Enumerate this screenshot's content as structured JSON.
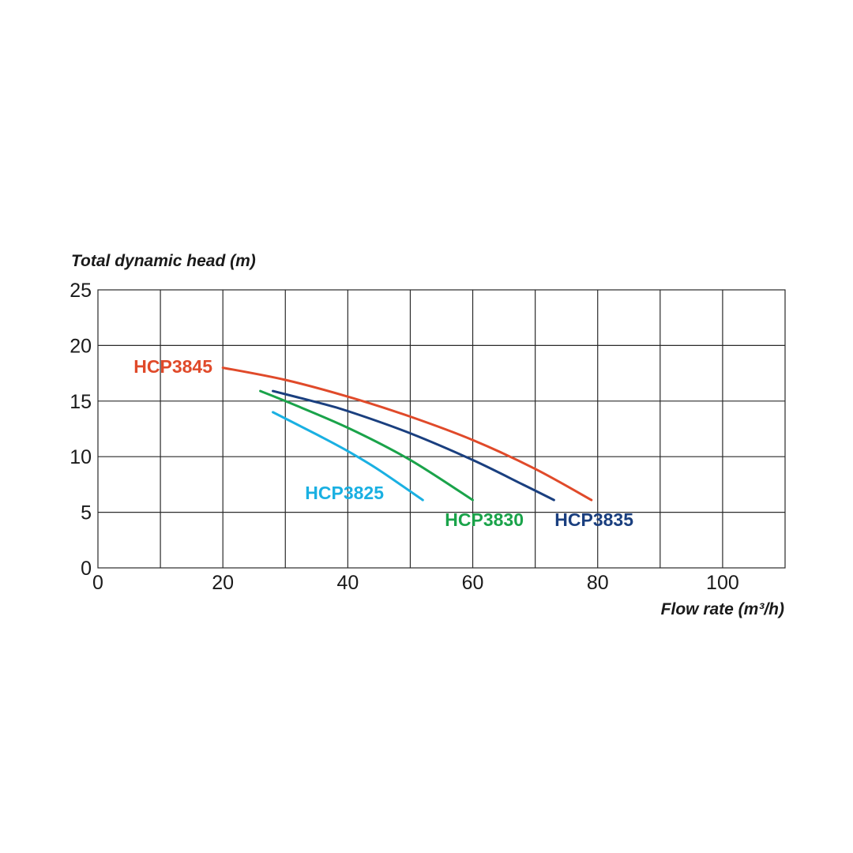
{
  "chart_data": {
    "type": "line",
    "xlabel": "Flow rate (m³/h)",
    "ylabel": "Total dynamic head (m)",
    "xlim": [
      0,
      110
    ],
    "ylim": [
      0,
      25
    ],
    "x_ticks": [
      0,
      20,
      40,
      60,
      80,
      100
    ],
    "y_ticks": [
      0,
      5,
      10,
      15,
      20,
      25
    ],
    "grid_x_step": 10,
    "grid_y_step": 5,
    "grid": true,
    "series": [
      {
        "name": "HCP3845",
        "color": "#e04a2a",
        "x": [
          20,
          30,
          40,
          50,
          60,
          70,
          79
        ],
        "y": [
          18,
          16.9,
          15.4,
          13.6,
          11.5,
          8.9,
          6.1
        ]
      },
      {
        "name": "HCP3835",
        "color": "#1a3f7f",
        "x": [
          28,
          35,
          40,
          50,
          60,
          68,
          73
        ],
        "y": [
          15.9,
          14.9,
          14.1,
          12.1,
          9.7,
          7.5,
          6.1
        ]
      },
      {
        "name": "HCP3830",
        "color": "#1aa34a",
        "x": [
          26,
          30,
          40,
          50,
          60
        ],
        "y": [
          15.9,
          15.0,
          12.6,
          9.7,
          6.1
        ]
      },
      {
        "name": "HCP3825",
        "color": "#1ab0e2",
        "x": [
          28,
          35,
          40,
          45,
          52
        ],
        "y": [
          14,
          12,
          10.5,
          8.8,
          6.1
        ]
      }
    ]
  }
}
